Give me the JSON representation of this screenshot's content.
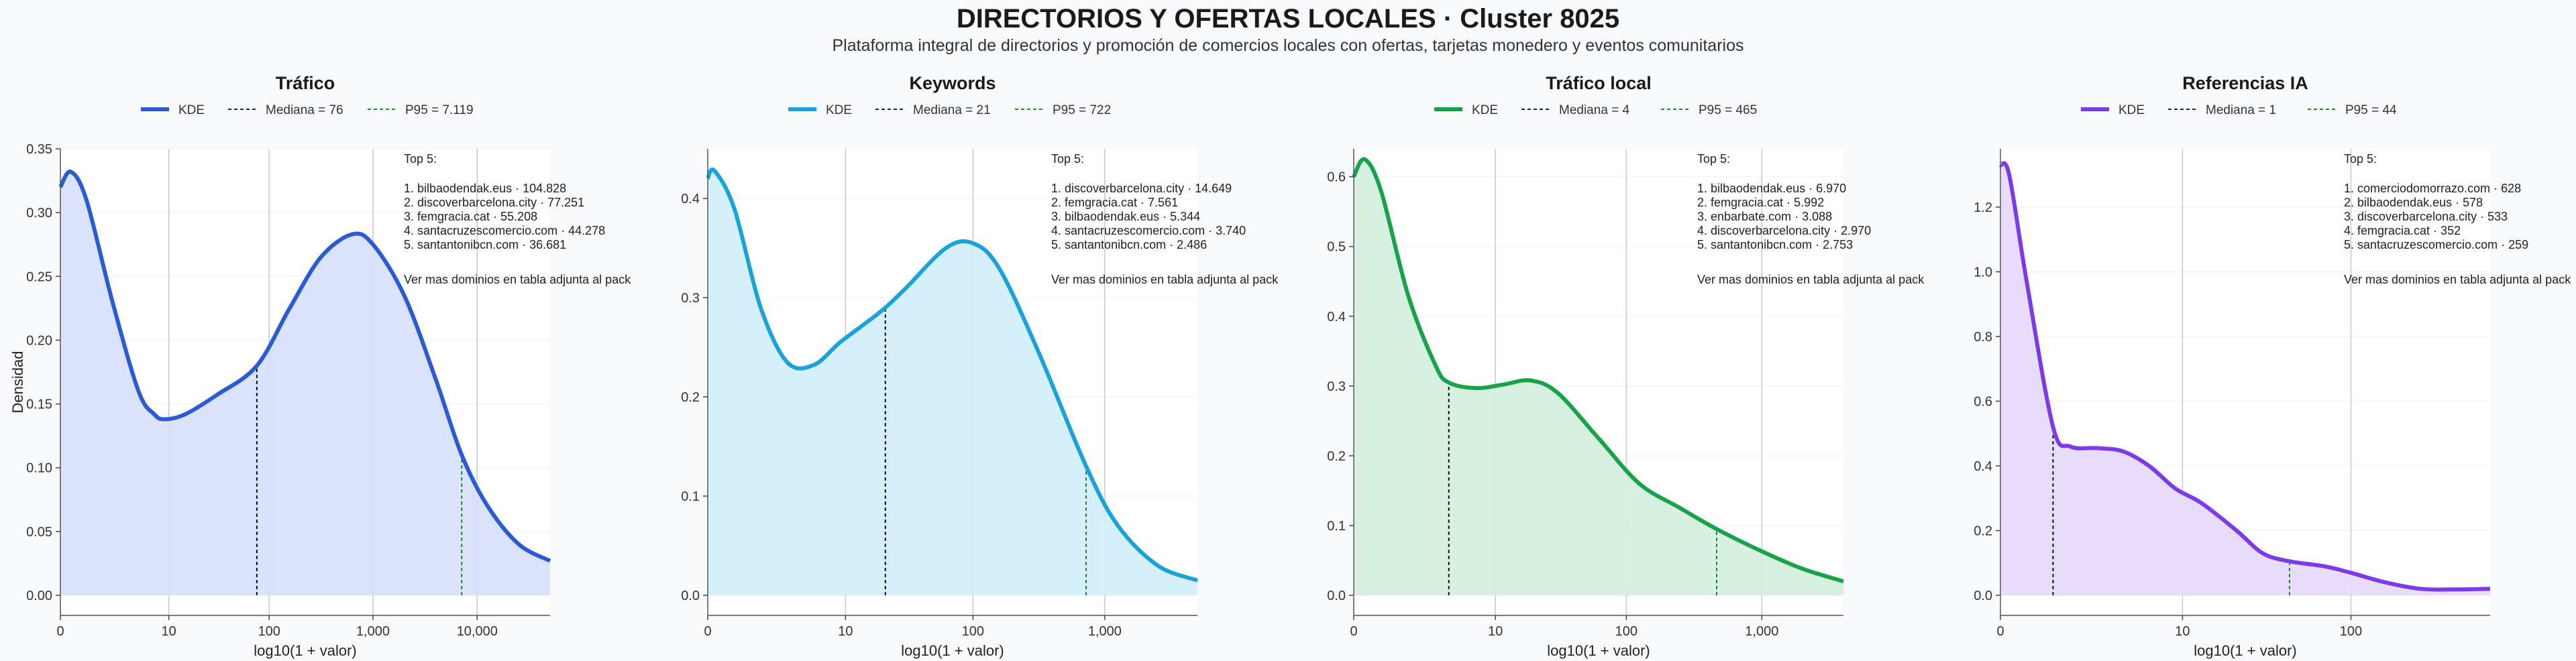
{
  "title": "DIRECTORIOS Y OFERTAS LOCALES · Cluster 8025",
  "subtitle": "Plataforma integral de directorios y promoción de comercios locales con ofertas, tarjetas monedero y eventos comunitarios",
  "ylabel": "Densidad",
  "xlabel": "log10(1 + valor)",
  "legend_kde": "KDE",
  "top_title": "Top 5:",
  "top_footer": "Ver mas dominios en tabla adjunta al pack",
  "chart_data": [
    {
      "type": "area",
      "title": "Tráfico",
      "color": "#2a5bd7",
      "fill": "#d6e0f9",
      "p95_color": "#1a8a2a",
      "xlim": [
        0,
        4.7
      ],
      "ylim": [
        0,
        0.35
      ],
      "yticks": [
        0,
        0.05,
        0.1,
        0.15,
        0.2,
        0.25,
        0.3,
        0.35
      ],
      "ytick_labels": [
        "0.00",
        "0.05",
        "0.10",
        "0.15",
        "0.20",
        "0.25",
        "0.30",
        "0.35"
      ],
      "xticks": [
        0,
        1.041,
        2.004,
        3.0,
        4.0
      ],
      "xtick_labels": [
        "0",
        "10",
        "100",
        "1,000",
        "10,000"
      ],
      "median_label": "Mediana = 76",
      "median_x": 1.886,
      "p95_label": "P95 = 7.119",
      "p95_x": 3.852,
      "x": [
        0,
        0.1,
        0.25,
        0.5,
        0.75,
        0.9,
        1.0,
        1.2,
        1.5,
        1.886,
        2.2,
        2.5,
        2.8,
        3.0,
        3.3,
        3.6,
        3.852,
        4.1,
        4.4,
        4.7
      ],
      "y": [
        0.32,
        0.332,
        0.31,
        0.23,
        0.16,
        0.142,
        0.138,
        0.142,
        0.157,
        0.18,
        0.225,
        0.265,
        0.283,
        0.275,
        0.235,
        0.17,
        0.11,
        0.07,
        0.04,
        0.027
      ],
      "top5": [
        "1. bilbaodendak.eus · 104.828",
        "2. discoverbarcelona.city · 77.251",
        "3. femgracia.cat · 55.208",
        "4. santacruzescomercio.com · 44.278",
        "5. santantonibcn.com · 36.681"
      ]
    },
    {
      "type": "area",
      "title": "Keywords",
      "color": "#1aa3db",
      "fill": "#d2eefa",
      "p95_color": "#1a8a2a",
      "xlim": [
        0,
        3.7
      ],
      "ylim": [
        0,
        0.45
      ],
      "yticks": [
        0,
        0.1,
        0.2,
        0.3,
        0.4
      ],
      "ytick_labels": [
        "0.0",
        "0.1",
        "0.2",
        "0.3",
        "0.4"
      ],
      "xticks": [
        0,
        1.041,
        2.004,
        3.0
      ],
      "xtick_labels": [
        "0",
        "10",
        "100",
        "1,000"
      ],
      "median_label": "Mediana = 21",
      "median_x": 1.342,
      "p95_label": "P95 = 722",
      "p95_x": 2.859,
      "x": [
        0,
        0.05,
        0.2,
        0.4,
        0.6,
        0.8,
        1.0,
        1.2,
        1.342,
        1.5,
        1.8,
        2.0,
        2.2,
        2.5,
        2.859,
        3.1,
        3.4,
        3.7
      ],
      "y": [
        0.42,
        0.428,
        0.39,
        0.29,
        0.235,
        0.232,
        0.255,
        0.275,
        0.29,
        0.31,
        0.35,
        0.355,
        0.33,
        0.245,
        0.13,
        0.07,
        0.03,
        0.015
      ],
      "top5": [
        "1. discoverbarcelona.city · 14.649",
        "2. femgracia.cat · 7.561",
        "3. bilbaodendak.eus · 5.344",
        "4. santacruzescomercio.com · 3.740",
        "5. santantonibcn.com · 2.486"
      ]
    },
    {
      "type": "area",
      "title": "Tráfico local",
      "color": "#16a34a",
      "fill": "#d3eedb",
      "p95_color": "#1a8a2a",
      "xlim": [
        0,
        3.6
      ],
      "ylim": [
        0,
        0.64
      ],
      "yticks": [
        0,
        0.1,
        0.2,
        0.3,
        0.4,
        0.5,
        0.6
      ],
      "ytick_labels": [
        "0.0",
        "0.1",
        "0.2",
        "0.3",
        "0.4",
        "0.5",
        "0.6"
      ],
      "xticks": [
        0,
        1.041,
        2.004,
        3.0
      ],
      "xtick_labels": [
        "0",
        "10",
        "100",
        "1,000"
      ],
      "median_label": "Mediana = 4",
      "median_x": 0.699,
      "p95_label": "P95 = 465",
      "p95_x": 2.668,
      "x": [
        0,
        0.08,
        0.2,
        0.4,
        0.6,
        0.699,
        0.9,
        1.1,
        1.3,
        1.5,
        1.8,
        2.1,
        2.4,
        2.668,
        3.0,
        3.3,
        3.6
      ],
      "y": [
        0.6,
        0.625,
        0.58,
        0.43,
        0.33,
        0.305,
        0.297,
        0.302,
        0.308,
        0.29,
        0.225,
        0.16,
        0.125,
        0.095,
        0.063,
        0.038,
        0.02
      ],
      "top5": [
        "1. bilbaodendak.eus · 6.970",
        "2. femgracia.cat · 5.992",
        "3. enbarbate.com · 3.088",
        "4. discoverbarcelona.city · 2.970",
        "5. santantonibcn.com · 2.753"
      ]
    },
    {
      "type": "area",
      "title": "Referencias IA",
      "color": "#7c3aed",
      "fill": "#e6dafb",
      "p95_color": "#1a8a2a",
      "xlim": [
        0,
        2.8
      ],
      "ylim": [
        0,
        1.38
      ],
      "yticks": [
        0,
        0.2,
        0.4,
        0.6,
        0.8,
        1.0,
        1.2
      ],
      "ytick_labels": [
        "0.0",
        "0.2",
        "0.4",
        "0.6",
        "0.8",
        "1.0",
        "1.2"
      ],
      "xticks": [
        0,
        1.041,
        2.004
      ],
      "xtick_labels": [
        "0",
        "10",
        "100"
      ],
      "median_label": "Mediana = 1",
      "median_x": 0.301,
      "p95_label": "P95 = 44",
      "p95_x": 1.653,
      "x": [
        0,
        0.05,
        0.15,
        0.301,
        0.4,
        0.55,
        0.7,
        0.85,
        1.0,
        1.15,
        1.35,
        1.5,
        1.653,
        1.85,
        2.0,
        2.2,
        2.4,
        2.6,
        2.8
      ],
      "y": [
        1.33,
        1.3,
        0.97,
        0.52,
        0.46,
        0.455,
        0.445,
        0.4,
        0.33,
        0.285,
        0.2,
        0.13,
        0.105,
        0.09,
        0.07,
        0.04,
        0.02,
        0.018,
        0.02
      ],
      "top5": [
        "1. comerciodomorrazo.com · 628",
        "2. bilbaodendak.eus · 578",
        "3. discoverbarcelona.city · 533",
        "4. femgracia.cat · 352",
        "5. santacruzescomercio.com · 259"
      ]
    }
  ]
}
